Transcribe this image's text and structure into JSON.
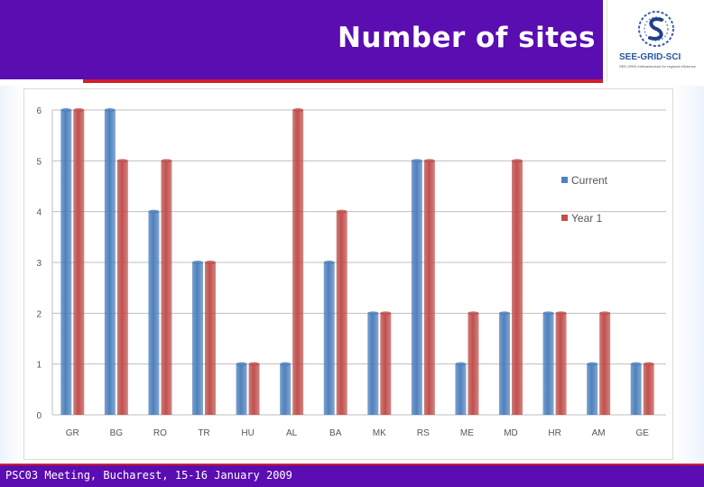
{
  "header": {
    "title": "Number of sites"
  },
  "logo": {
    "name": "SEE-GRID-SCI",
    "tagline": "SEE-GRID eInfrastructure for regional eScience",
    "icon": "see-grid-logo-icon"
  },
  "footer": {
    "text": "PSC03 Meeting, Bucharest, 15-16 January 2009"
  },
  "colors": {
    "header": "#5a0db0",
    "accent_red": "#d21e28",
    "current": "#4f81bd",
    "year1": "#c0504d"
  },
  "chart_data": {
    "type": "bar",
    "categories": [
      "GR",
      "BG",
      "RO",
      "TR",
      "HU",
      "AL",
      "BA",
      "MK",
      "RS",
      "ME",
      "MD",
      "HR",
      "AM",
      "GE"
    ],
    "series": [
      {
        "name": "Current",
        "values": [
          6,
          6,
          4,
          3,
          1,
          1,
          3,
          2,
          5,
          1,
          2,
          2,
          1,
          1
        ]
      },
      {
        "name": "Year 1",
        "values": [
          6,
          5,
          5,
          3,
          1,
          6,
          4,
          2,
          5,
          2,
          5,
          2,
          2,
          1
        ]
      }
    ],
    "yticks": [
      "0",
      "1",
      "2",
      "3",
      "4",
      "5",
      "6"
    ],
    "ylim": [
      0,
      6
    ],
    "grid": true,
    "legend_position": "right"
  }
}
